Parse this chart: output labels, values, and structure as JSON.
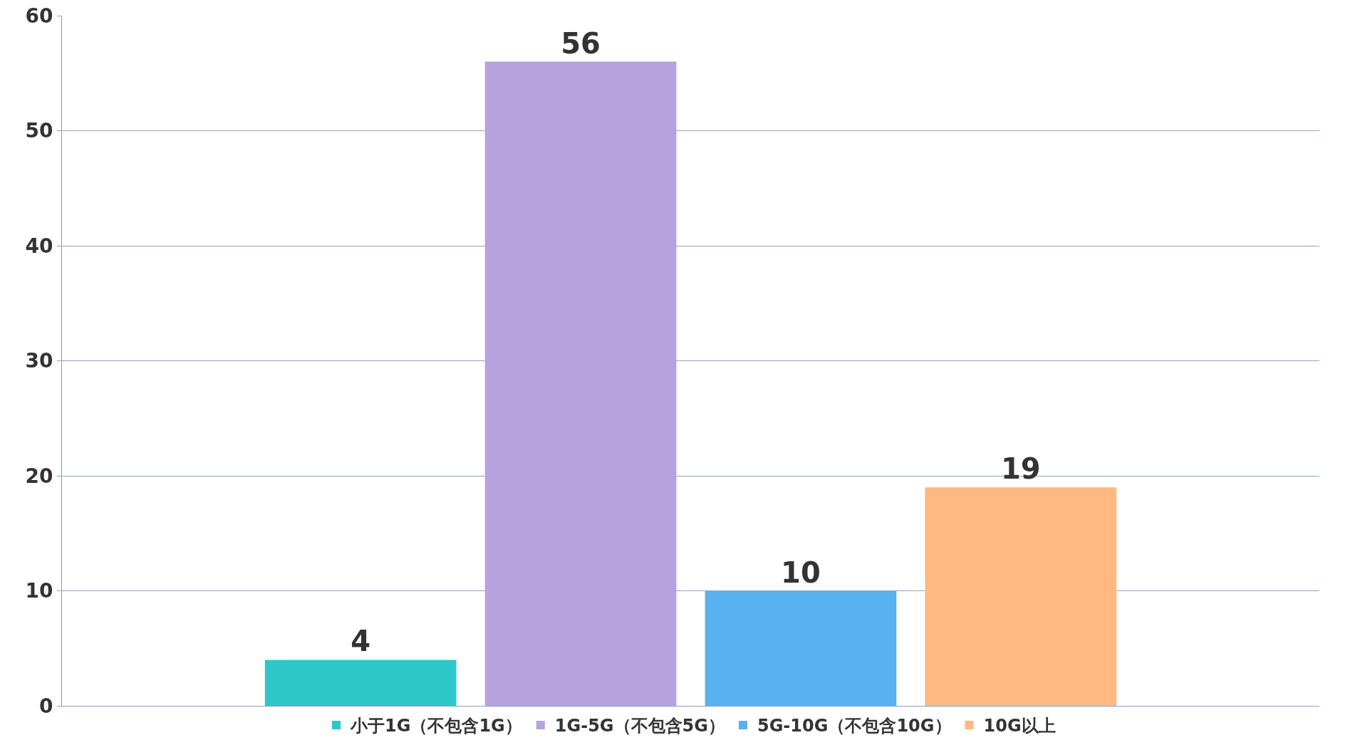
{
  "chart_data": {
    "type": "bar",
    "categories": [
      null
    ],
    "series": [
      {
        "name": "小于1G（不包含1G）",
        "color": "#2ec7c9",
        "values": [
          4
        ]
      },
      {
        "name": "1G-5G（不包含5G）",
        "color": "#b6a2de",
        "values": [
          56
        ]
      },
      {
        "name": "5G-10G（不包含10G）",
        "color": "#5ab1ef",
        "values": [
          10
        ]
      },
      {
        "name": "10G以上",
        "color": "#ffb980",
        "values": [
          19
        ]
      }
    ],
    "ylim": [
      0,
      60
    ],
    "yticks": [
      0,
      10,
      20,
      30,
      40,
      50,
      60
    ],
    "grid": "y",
    "legend": "bottom",
    "data_labels": true
  }
}
